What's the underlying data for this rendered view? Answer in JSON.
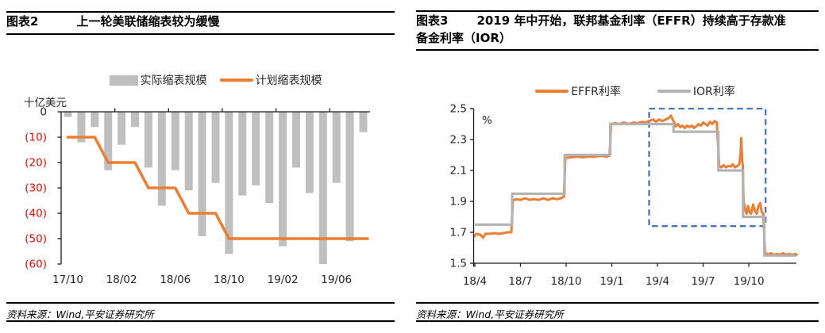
{
  "colors": {
    "orange": "#ED7D31",
    "bar_gray": "#BFBFBF",
    "ior_gray": "#B3B3B3",
    "negative_red": "#FF0000",
    "axis_dark": "#1a1a1a",
    "label_dark": "#262626",
    "highlight_blue": "#4876BE"
  },
  "panels": {
    "left": {
      "fig_label": "图表2",
      "title": "上一轮美联储缩表较为缓慢",
      "source": "资料来源：Wind,平安证券研究所",
      "legend": [
        {
          "label": "实际缩表规模",
          "swatch": "bar",
          "color": "#BFBFBF"
        },
        {
          "label": "计划缩表规模",
          "swatch": "line",
          "color": "#ED7D31"
        }
      ],
      "chart_data": {
        "type": "bar",
        "y_axis_title": "十亿美元",
        "categories": [
          "17/10",
          "17/11",
          "17/12",
          "18/01",
          "18/02",
          "18/03",
          "18/04",
          "18/05",
          "18/06",
          "18/07",
          "18/08",
          "18/09",
          "18/10",
          "18/11",
          "18/12",
          "19/01",
          "19/02",
          "19/03",
          "19/04",
          "19/05",
          "19/06",
          "19/07",
          "19/08"
        ],
        "series": [
          {
            "name": "实际缩表规模",
            "type": "bar",
            "color": "#BFBFBF",
            "values": [
              -2,
              -12,
              -6,
              -23,
              -13,
              -6,
              -22,
              -37,
              -23,
              -31,
              -49,
              -28,
              -56,
              -33,
              -29,
              -36,
              -53,
              -22,
              -32,
              -60,
              -28,
              -51,
              -8
            ]
          },
          {
            "name": "计划缩表规模",
            "type": "line",
            "color": "#ED7D31",
            "values": [
              -10,
              -10,
              -10,
              -20,
              -20,
              -20,
              -30,
              -30,
              -30,
              -40,
              -40,
              -40,
              -50,
              -50,
              -50,
              -50,
              -50,
              -50,
              -50,
              -50,
              -50,
              -50,
              -50
            ]
          }
        ],
        "x_tick_labels": [
          "17/10",
          "18/02",
          "18/06",
          "18/10",
          "19/02",
          "19/06"
        ],
        "x_label_every": 4,
        "y_ticks": [
          0,
          -10,
          -20,
          -30,
          -40,
          -50,
          -60
        ],
        "y_tick_labels": [
          "0",
          "(10)",
          "(20)",
          "(30)",
          "(40)",
          "(50)",
          "(60)"
        ],
        "ylim": [
          -60,
          0
        ]
      }
    },
    "right": {
      "fig_label": "图表3",
      "title": "2019 年中开始，联邦基金利率（EFFR）持续高于存款准备金利率（IOR）",
      "source": "资料来源：Wind,平安证券研究所",
      "legend": [
        {
          "label": "EFFR利率",
          "swatch": "line",
          "color": "#ED7D31"
        },
        {
          "label": "IOR利率",
          "swatch": "line",
          "color": "#B3B3B3"
        }
      ],
      "chart_data": {
        "type": "line",
        "y_axis_title": "%",
        "x_unit_note": "months since 2018-04",
        "x_tick_labels": [
          "18/4",
          "18/7",
          "18/10",
          "19/1",
          "19/4",
          "19/7",
          "19/10"
        ],
        "x_tick_positions": [
          0,
          3,
          6,
          9,
          12,
          15,
          18
        ],
        "xlim": [
          0,
          21.2
        ],
        "y_ticks": [
          1.5,
          1.7,
          1.9,
          2.1,
          2.3,
          2.5
        ],
        "y_tick_labels": [
          "1.5",
          "1.7",
          "1.9",
          "2.1",
          "2.3",
          "2.5"
        ],
        "ylim": [
          1.5,
          2.5
        ],
        "series": [
          {
            "name": "EFFR利率",
            "color": "#ED7D31",
            "points": [
              [
                0,
                1.675
              ],
              [
                0.1,
                1.69
              ],
              [
                0.35,
                1.685
              ],
              [
                0.55,
                1.665
              ],
              [
                0.7,
                1.69
              ],
              [
                1,
                1.69
              ],
              [
                1.3,
                1.695
              ],
              [
                1.6,
                1.69
              ],
              [
                1.9,
                1.695
              ],
              [
                2.15,
                1.7
              ],
              [
                2.4,
                1.7
              ],
              [
                2.5,
                1.905
              ],
              [
                2.7,
                1.915
              ],
              [
                3,
                1.91
              ],
              [
                3.3,
                1.92
              ],
              [
                3.6,
                1.91
              ],
              [
                3.9,
                1.915
              ],
              [
                4.2,
                1.91
              ],
              [
                4.5,
                1.92
              ],
              [
                4.8,
                1.91
              ],
              [
                5.1,
                1.92
              ],
              [
                5.4,
                1.915
              ],
              [
                5.65,
                1.92
              ],
              [
                5.85,
                1.93
              ],
              [
                5.95,
                2.18
              ],
              [
                6.3,
                2.185
              ],
              [
                6.7,
                2.19
              ],
              [
                7.1,
                2.185
              ],
              [
                7.5,
                2.19
              ],
              [
                7.9,
                2.19
              ],
              [
                8.3,
                2.195
              ],
              [
                8.6,
                2.19
              ],
              [
                8.85,
                2.195
              ],
              [
                8.95,
                2.4
              ],
              [
                9.2,
                2.405
              ],
              [
                9.5,
                2.4
              ],
              [
                9.8,
                2.41
              ],
              [
                10.1,
                2.4
              ],
              [
                10.4,
                2.41
              ],
              [
                10.7,
                2.405
              ],
              [
                11,
                2.415
              ],
              [
                11.2,
                2.41
              ],
              [
                11.45,
                2.42
              ],
              [
                11.7,
                2.43
              ],
              [
                11.9,
                2.415
              ],
              [
                12.1,
                2.43
              ],
              [
                12.3,
                2.42
              ],
              [
                12.55,
                2.43
              ],
              [
                12.75,
                2.44
              ],
              [
                12.88,
                2.455
              ],
              [
                13,
                2.43
              ],
              [
                13.1,
                2.41
              ],
              [
                13.2,
                2.385
              ],
              [
                13.35,
                2.4
              ],
              [
                13.5,
                2.38
              ],
              [
                13.65,
                2.39
              ],
              [
                13.8,
                2.375
              ],
              [
                13.95,
                2.39
              ],
              [
                14.1,
                2.38
              ],
              [
                14.25,
                2.39
              ],
              [
                14.4,
                2.375
              ],
              [
                14.55,
                2.385
              ],
              [
                14.7,
                2.4
              ],
              [
                14.85,
                2.39
              ],
              [
                15,
                2.41
              ],
              [
                15.15,
                2.4
              ],
              [
                15.3,
                2.39
              ],
              [
                15.45,
                2.415
              ],
              [
                15.6,
                2.4
              ],
              [
                15.75,
                2.42
              ],
              [
                15.9,
                2.41
              ],
              [
                16.05,
                2.13
              ],
              [
                16.2,
                2.12
              ],
              [
                16.35,
                2.135
              ],
              [
                16.5,
                2.12
              ],
              [
                16.65,
                2.13
              ],
              [
                16.8,
                2.125
              ],
              [
                16.95,
                2.14
              ],
              [
                17.1,
                2.12
              ],
              [
                17.25,
                2.13
              ],
              [
                17.38,
                2.14
              ],
              [
                17.46,
                2.21
              ],
              [
                17.5,
                2.31
              ],
              [
                17.56,
                2.17
              ],
              [
                17.6,
                2.14
              ],
              [
                17.66,
                1.9
              ],
              [
                17.75,
                1.85
              ],
              [
                17.85,
                1.82
              ],
              [
                17.95,
                1.87
              ],
              [
                18.05,
                1.83
              ],
              [
                18.15,
                1.82
              ],
              [
                18.28,
                1.88
              ],
              [
                18.4,
                1.84
              ],
              [
                18.52,
                1.82
              ],
              [
                18.64,
                1.87
              ],
              [
                18.75,
                1.89
              ],
              [
                18.85,
                1.83
              ],
              [
                18.95,
                1.82
              ],
              [
                19.06,
                1.57
              ],
              [
                19.25,
                1.555
              ],
              [
                19.45,
                1.565
              ],
              [
                19.65,
                1.555
              ],
              [
                19.85,
                1.56
              ],
              [
                20.05,
                1.555
              ],
              [
                20.25,
                1.565
              ],
              [
                20.45,
                1.555
              ],
              [
                20.65,
                1.56
              ],
              [
                20.85,
                1.555
              ],
              [
                21.05,
                1.56
              ],
              [
                21.15,
                1.555
              ]
            ]
          },
          {
            "name": "IOR利率",
            "color": "#B3B3B3",
            "points": [
              [
                0,
                1.75
              ],
              [
                2.45,
                1.75
              ],
              [
                2.45,
                1.95
              ],
              [
                5.9,
                1.95
              ],
              [
                5.9,
                2.2
              ],
              [
                8.9,
                2.2
              ],
              [
                8.9,
                2.4
              ],
              [
                13.05,
                2.4
              ],
              [
                13.05,
                2.35
              ],
              [
                16,
                2.35
              ],
              [
                16,
                2.1
              ],
              [
                17.62,
                2.1
              ],
              [
                17.62,
                1.8
              ],
              [
                19.02,
                1.8
              ],
              [
                19.02,
                1.55
              ],
              [
                21.1,
                1.55
              ]
            ]
          }
        ],
        "highlight_box": {
          "x": [
            11.45,
            19.1
          ],
          "y": [
            1.74,
            2.5
          ],
          "color": "#4876BE",
          "style": "dashed"
        }
      }
    }
  }
}
